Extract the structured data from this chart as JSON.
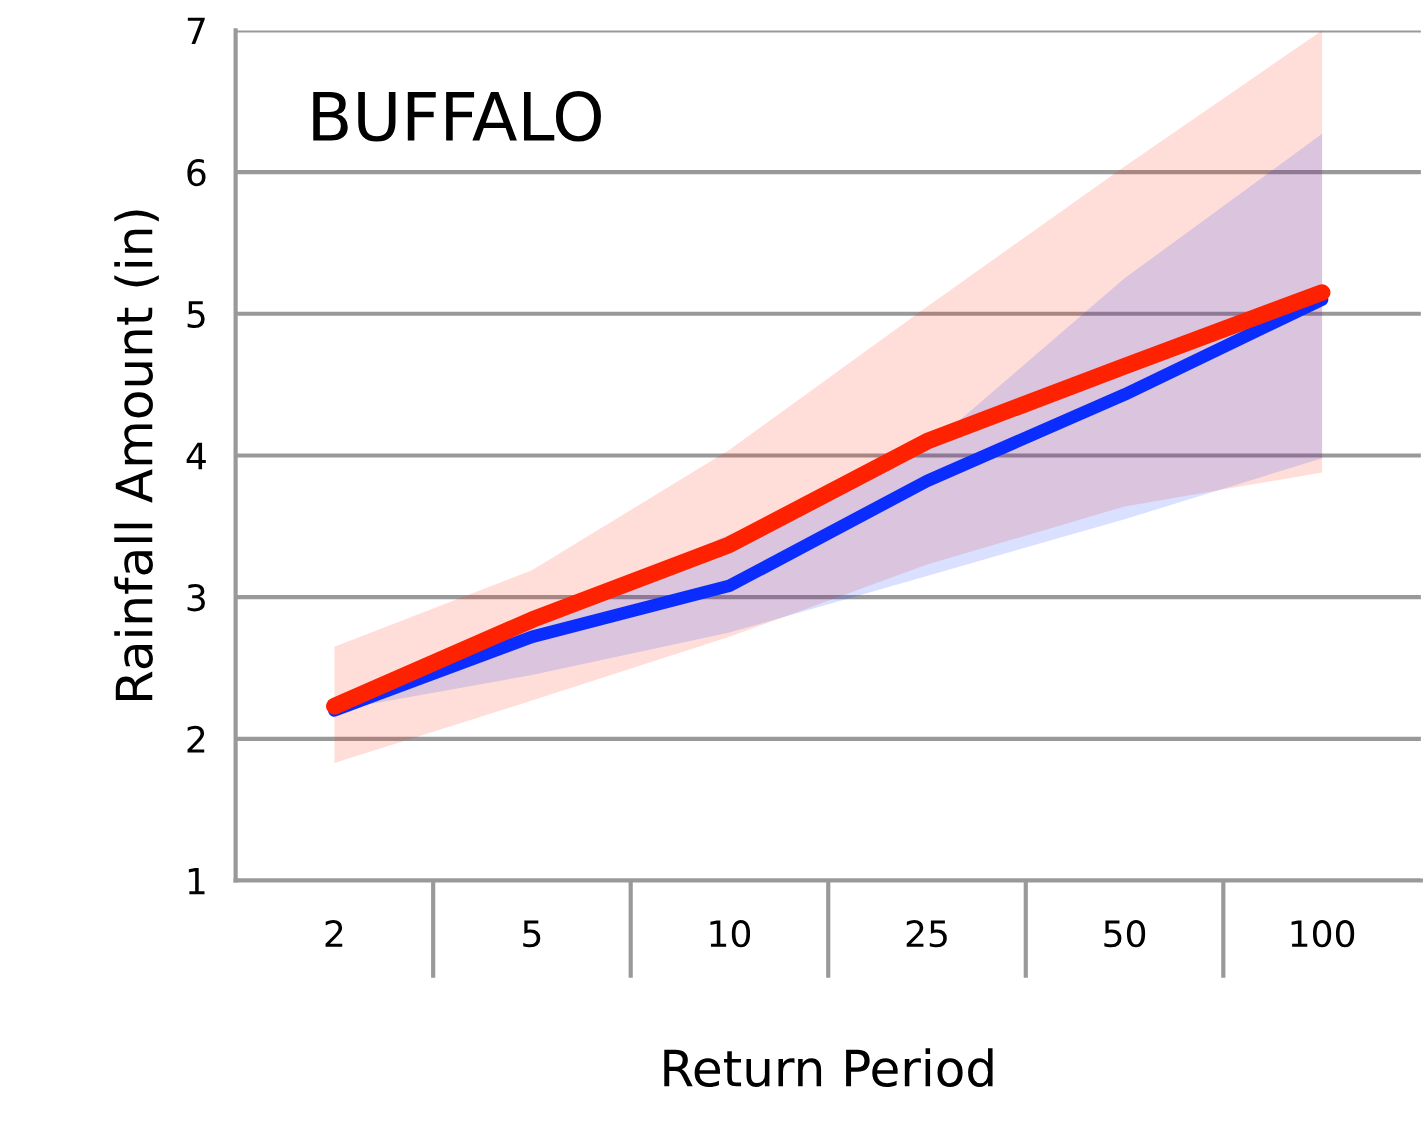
{
  "chart_data": {
    "type": "line",
    "title": "BUFFALO",
    "xlabel": "Return Period",
    "ylabel": "Rainfall Amount (in)",
    "categories": [
      "2",
      "5",
      "10",
      "25",
      "50",
      "100"
    ],
    "series": [
      {
        "color": "#0a2cff",
        "values": [
          2.2,
          2.72,
          3.08,
          3.82,
          4.43,
          5.1
        ],
        "lower": [
          2.2,
          2.45,
          2.75,
          3.15,
          3.55,
          3.98
        ],
        "upper": [
          2.25,
          2.85,
          3.44,
          4.05,
          5.25,
          6.27
        ]
      },
      {
        "color": "#ff2200",
        "values": [
          2.23,
          2.84,
          3.37,
          4.1,
          4.63,
          5.15
        ],
        "lower": [
          1.83,
          2.27,
          2.72,
          3.23,
          3.64,
          3.88
        ],
        "upper": [
          2.65,
          3.19,
          4.04,
          5.05,
          6.04,
          7.0
        ]
      }
    ],
    "ylim": [
      1,
      7
    ],
    "yticks": [
      1,
      2,
      3,
      4,
      5,
      6,
      7
    ],
    "grid": "y",
    "legend": false,
    "marker": "none",
    "line_style": "solid"
  }
}
